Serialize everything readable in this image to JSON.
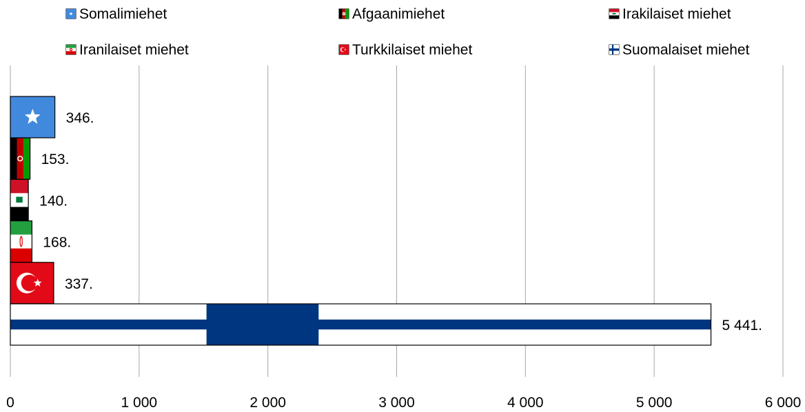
{
  "chart_data": {
    "type": "bar",
    "orientation": "horizontal",
    "categories": [
      "Somalimiehet",
      "Afgaanimiehet",
      "Irakilaiset miehet",
      "Iranilaiset miehet",
      "Turkkilaiset miehet",
      "Suomalaiset miehet"
    ],
    "values": [
      346,
      153,
      140,
      168,
      337,
      5441
    ],
    "data_labels": [
      "346.",
      "153.",
      "140.",
      "168.",
      "337.",
      "5 441."
    ],
    "xlim": [
      0,
      6000
    ],
    "ticks": [
      0,
      1000,
      2000,
      3000,
      4000,
      5000,
      6000
    ],
    "tick_labels": [
      "0",
      "1 000",
      "2 000",
      "3 000",
      "4 000",
      "5 000",
      "6 000"
    ],
    "grid": "vertical",
    "legend_position": "top",
    "bar_fill": "flags",
    "flags": [
      "somalia",
      "afghanistan",
      "iraq",
      "iran",
      "turkey",
      "finland"
    ],
    "colors": {
      "somalia_blue": "#4189DD",
      "turkey_red": "#E30A17",
      "finland_blue": "#003580",
      "afghan_green": "#009900",
      "afghan_red": "#BE0000",
      "iraq_red": "#CE1126",
      "iran_green": "#239F40",
      "iran_red": "#DA0000",
      "grid": "#A6A6A6"
    }
  }
}
